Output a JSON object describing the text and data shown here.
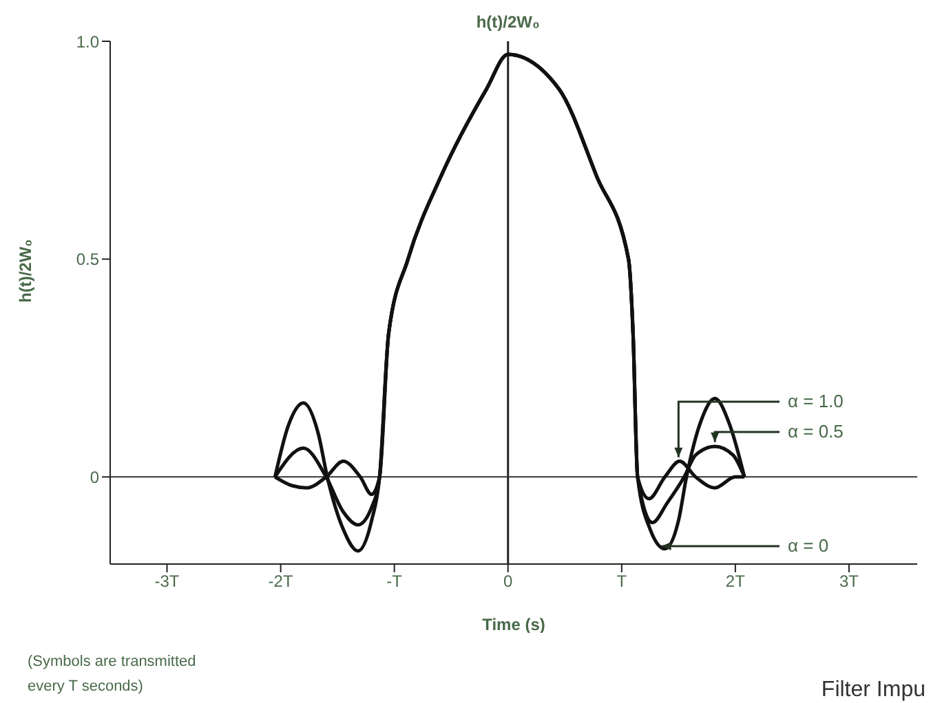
{
  "chart_data": {
    "type": "line",
    "title": "h(t)/2W₀",
    "xlabel": "Time (s)",
    "ylabel": "h(t)/2W₀",
    "xlim": [
      -3.5,
      3.6
    ],
    "xticks": [
      {
        "value": -3,
        "label": "-3T"
      },
      {
        "value": -2,
        "label": "-2T"
      },
      {
        "value": -1,
        "label": "-T"
      },
      0,
      {
        "value": 1,
        "label": "T"
      },
      {
        "value": 2,
        "label": "2T"
      },
      {
        "value": 3,
        "label": "3T"
      }
    ],
    "ylim": [
      -0.2,
      1
    ],
    "yticks": [
      0,
      0.5,
      {
        "value": 1,
        "label": "1.0"
      }
    ],
    "series": [
      {
        "name": "α = 1.0",
        "color": "#111111",
        "x": [
          -2.05,
          -1.9,
          -1.77,
          -1.6,
          -1.45,
          -1.3,
          -1.2,
          -1.13,
          -1.05,
          -0.88,
          -0.59,
          -0.19,
          0,
          0.45,
          0.78,
          1.06,
          1.1,
          1.14,
          1.24,
          1.38,
          1.51,
          1.65,
          1.82,
          2.0,
          2.08
        ],
        "values": [
          0,
          -0.02,
          -0.025,
          0,
          0.036,
          0,
          -0.04,
          0,
          0.33,
          0.5,
          0.69,
          0.89,
          0.97,
          0.89,
          0.69,
          0.5,
          0.33,
          0,
          -0.05,
          0,
          0.036,
          0,
          -0.025,
          0,
          0
        ]
      },
      {
        "name": "α = 0.5",
        "color": "#111111",
        "x": [
          -2.05,
          -1.8,
          -1.6,
          -1.45,
          -1.32,
          -1.2,
          -1.13,
          -1.05,
          -0.88,
          -0.59,
          -0.19,
          0,
          0.45,
          0.78,
          1.06,
          1.1,
          1.14,
          1.27,
          1.4,
          1.55,
          1.65,
          1.82,
          1.98,
          2.08
        ],
        "values": [
          0,
          0.066,
          0,
          -0.08,
          -0.11,
          -0.07,
          0,
          0.33,
          0.5,
          0.69,
          0.89,
          0.97,
          0.89,
          0.69,
          0.5,
          0.33,
          0,
          -0.105,
          -0.06,
          0,
          0.05,
          0.07,
          0.05,
          0
        ]
      },
      {
        "name": "α = 0",
        "color": "#111111",
        "x": [
          -2.05,
          -1.93,
          -1.8,
          -1.67,
          -1.59,
          -1.45,
          -1.32,
          -1.2,
          -1.13,
          -1.05,
          -0.88,
          -0.59,
          -0.19,
          0,
          0.45,
          0.78,
          1.06,
          1.1,
          1.14,
          1.25,
          1.38,
          1.5,
          1.57,
          1.7,
          1.82,
          1.95,
          2.08
        ],
        "values": [
          0,
          0.12,
          0.17,
          0.1,
          0,
          -0.12,
          -0.17,
          -0.1,
          0,
          0.33,
          0.5,
          0.69,
          0.89,
          0.97,
          0.89,
          0.69,
          0.5,
          0.33,
          0,
          -0.12,
          -0.165,
          -0.1,
          0,
          0.13,
          0.18,
          0.12,
          0
        ]
      }
    ],
    "ref_lines": [
      {
        "axis": "x",
        "value": 0
      },
      {
        "axis": "y",
        "value": 0
      }
    ],
    "annotations": [
      "(Symbols are transmitted every T seconds)",
      "Filter Impu"
    ]
  }
}
